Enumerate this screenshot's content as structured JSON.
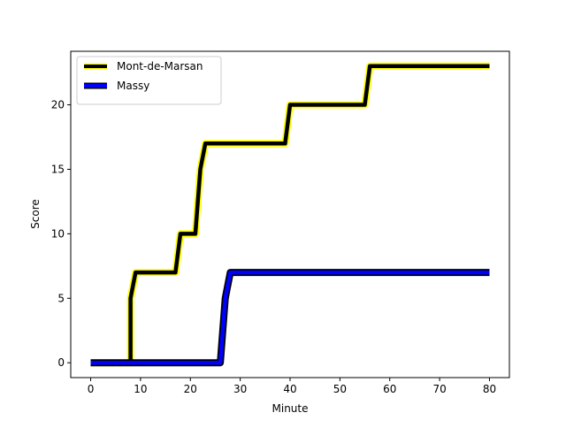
{
  "chart_data": {
    "type": "line",
    "title": "",
    "xlabel": "Minute",
    "ylabel": "Score",
    "xlim": [
      -4,
      84
    ],
    "ylim": [
      -1.15,
      24.15
    ],
    "xticks": [
      0,
      10,
      20,
      30,
      40,
      50,
      60,
      70,
      80
    ],
    "yticks": [
      0,
      5,
      10,
      15,
      20
    ],
    "grid": false,
    "legend_position": "top-left",
    "series": [
      {
        "name": "Mont-de-Marsan",
        "line_color": "#000000",
        "outline_color": "#ffff00",
        "x": [
          0,
          8,
          8,
          9,
          17,
          18,
          21,
          22,
          23,
          39,
          40,
          55,
          56,
          80
        ],
        "y": [
          0,
          0,
          5,
          7,
          7,
          10,
          10,
          15,
          17,
          17,
          20,
          20,
          23,
          23
        ]
      },
      {
        "name": "Massy",
        "line_color": "#0000ff",
        "outline_color": "#000000",
        "x": [
          0,
          26,
          27,
          28,
          80
        ],
        "y": [
          0,
          0,
          5,
          7,
          7
        ]
      }
    ]
  }
}
